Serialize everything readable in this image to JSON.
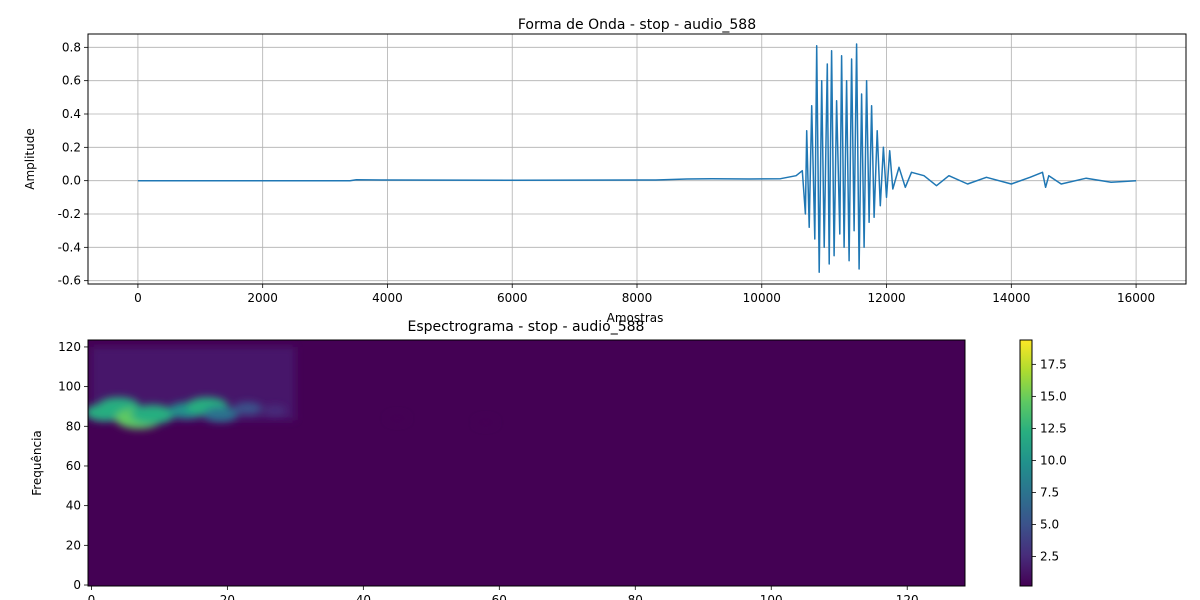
{
  "chart_data": [
    {
      "type": "line",
      "title": "Forma de Onda - stop - audio_588",
      "xlabel": "Amostras",
      "ylabel": "Amplitude",
      "xlim": [
        -800,
        16800
      ],
      "ylim": [
        -0.62,
        0.88
      ],
      "xticks": [
        0,
        2000,
        4000,
        6000,
        8000,
        10000,
        12000,
        14000,
        16000
      ],
      "yticks": [
        -0.6,
        -0.4,
        -0.2,
        0.0,
        0.2,
        0.4,
        0.6,
        0.8
      ],
      "grid": true,
      "line_color": "#1f77b4",
      "series": [
        {
          "x": [
            0,
            3400,
            3500,
            4000,
            6000,
            8300,
            8800,
            9200,
            9800,
            10300,
            10550,
            10650,
            10700,
            10720,
            10760,
            10800,
            10850,
            10880,
            10920,
            10960,
            11000,
            11050,
            11080,
            11120,
            11160,
            11200,
            11250,
            11280,
            11320,
            11360,
            11400,
            11440,
            11480,
            11520,
            11560,
            11600,
            11640,
            11680,
            11720,
            11760,
            11800,
            11850,
            11900,
            11950,
            12000,
            12050,
            12100,
            12200,
            12300,
            12400,
            12600,
            12800,
            13000,
            13300,
            13600,
            14000,
            14300,
            14500,
            14550,
            14600,
            14800,
            15200,
            15600,
            16000
          ],
          "y": [
            0.0,
            0.0,
            0.005,
            0.004,
            0.003,
            0.004,
            0.01,
            0.012,
            0.01,
            0.012,
            0.03,
            0.06,
            -0.2,
            0.3,
            -0.28,
            0.45,
            -0.35,
            0.81,
            -0.55,
            0.6,
            -0.4,
            0.7,
            -0.5,
            0.78,
            -0.45,
            0.48,
            -0.32,
            0.75,
            -0.4,
            0.6,
            -0.48,
            0.73,
            -0.3,
            0.82,
            -0.53,
            0.52,
            -0.4,
            0.6,
            -0.25,
            0.45,
            -0.22,
            0.3,
            -0.15,
            0.2,
            -0.1,
            0.18,
            -0.05,
            0.08,
            -0.04,
            0.05,
            0.03,
            -0.03,
            0.03,
            -0.02,
            0.02,
            -0.02,
            0.02,
            0.05,
            -0.04,
            0.03,
            -0.02,
            0.015,
            -0.01,
            0.0
          ]
        }
      ]
    },
    {
      "type": "heatmap",
      "title": "Espectrograma - stop - audio_588",
      "xlabel": "",
      "ylabel": "Frequência",
      "xlim": [
        -0.5,
        128.5
      ],
      "ylim": [
        -0.5,
        123.5
      ],
      "xticks": [
        0,
        20,
        40,
        60,
        80,
        100,
        120
      ],
      "yticks": [
        0,
        20,
        40,
        60,
        80,
        100,
        120
      ],
      "colormap": "viridis",
      "colorbar": {
        "min": 0.2,
        "max": 19.4,
        "ticks": [
          2.5,
          5.0,
          7.5,
          10.0,
          12.5,
          15.0,
          17.5
        ]
      },
      "hotspots": [
        {
          "t": 2,
          "f": 87,
          "value": 11
        },
        {
          "t": 4,
          "f": 90,
          "value": 12
        },
        {
          "t": 7,
          "f": 84,
          "value": 15
        },
        {
          "t": 9,
          "f": 86,
          "value": 13
        },
        {
          "t": 14,
          "f": 88,
          "value": 9
        },
        {
          "t": 17,
          "f": 90,
          "value": 12
        },
        {
          "t": 19,
          "f": 86,
          "value": 8
        },
        {
          "t": 23,
          "f": 89,
          "value": 5
        },
        {
          "t": 27,
          "f": 88,
          "value": 2
        },
        {
          "t": 45,
          "f": 84,
          "value": 1
        },
        {
          "t": 58,
          "f": 82,
          "value": 1
        }
      ]
    }
  ]
}
